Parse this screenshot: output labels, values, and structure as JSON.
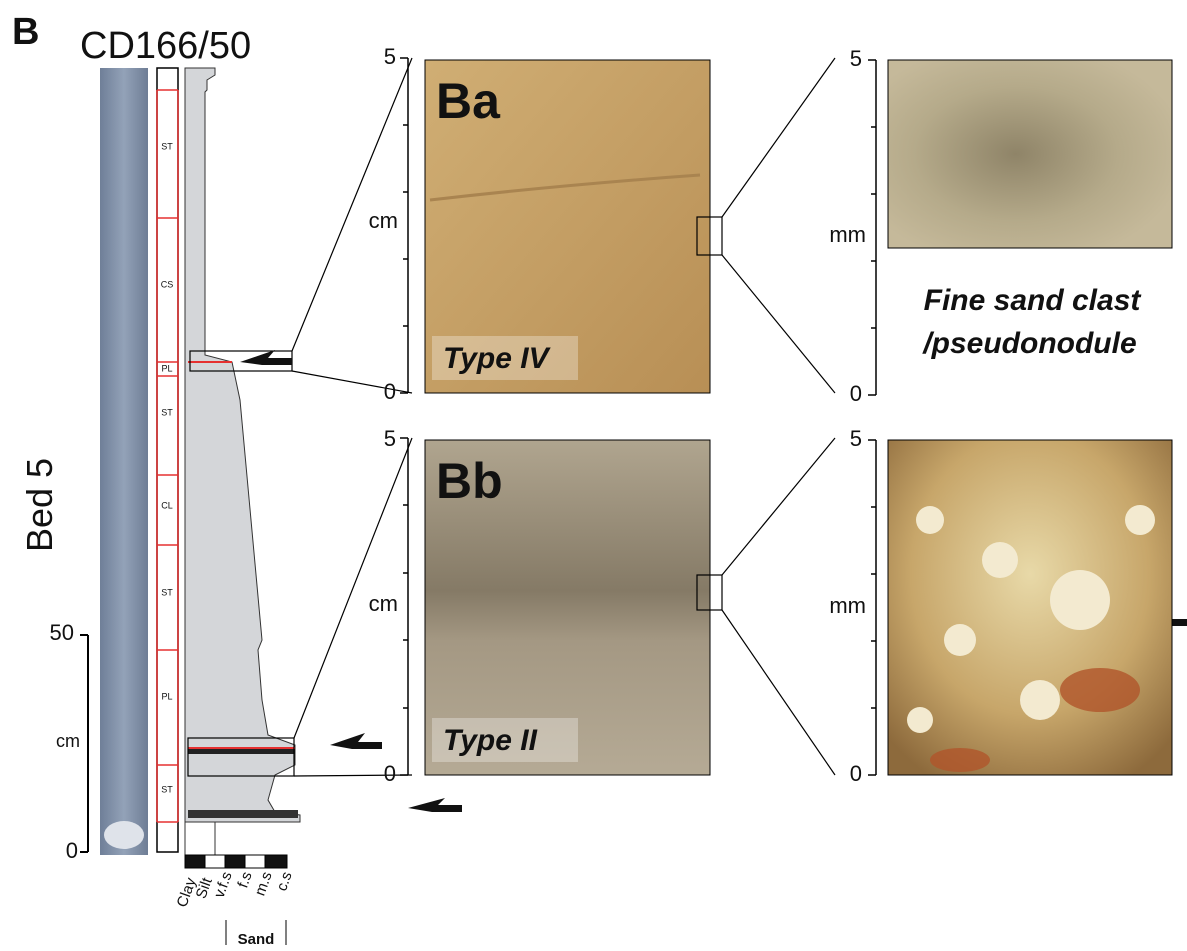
{
  "header": {
    "panel": "B",
    "core": "CD166/50",
    "bed": "Bed 5"
  },
  "core_scale": {
    "top": 50,
    "unit": "cm",
    "bottom": 0
  },
  "facies": [
    "ST",
    "CS",
    "PL",
    "ST",
    "CL",
    "ST",
    "PL",
    "ST"
  ],
  "grain_size": {
    "classes": [
      "Clay",
      "Silt",
      "v.f.s",
      "f.s",
      "m.s",
      "c.s"
    ],
    "group": "Sand"
  },
  "panels": [
    {
      "label": "Ba",
      "type_label": "Type IV",
      "scale": {
        "top": 5,
        "unit": "cm",
        "bottom": 0
      }
    },
    {
      "label": "Bb",
      "type_label": "Type II",
      "scale": {
        "top": 5,
        "unit": "cm",
        "bottom": 0
      }
    }
  ],
  "zooms": [
    {
      "scale": {
        "top": 5,
        "unit": "mm",
        "bottom": 0
      },
      "caption": [
        "Fine sand clast",
        "/pseudonodule"
      ]
    },
    {
      "scale": {
        "top": 5,
        "unit": "mm",
        "bottom": 0
      }
    }
  ]
}
